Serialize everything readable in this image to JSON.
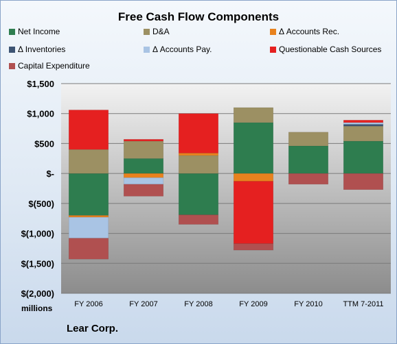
{
  "chart_data": {
    "type": "bar",
    "stacked": true,
    "title": "Free Cash Flow Components",
    "units_label": "millions",
    "company": "Lear Corp.",
    "categories": [
      "FY 2006",
      "FY 2007",
      "FY 2008",
      "FY 2009",
      "FY 2010",
      "TTM 7-2011"
    ],
    "ylim": [
      -2000,
      1500
    ],
    "yticks": [
      1500,
      1000,
      500,
      0,
      -500,
      -1000,
      -1500,
      -2000
    ],
    "ytick_labels": [
      "$1,500",
      "$1,000",
      "$500",
      "$-",
      "$(500)",
      "$(1,000)",
      "$(1,500)",
      "$(2,000)"
    ],
    "grid": true,
    "legend_position": "top",
    "series": [
      {
        "name": "Net Income",
        "color": "#2e7d4f",
        "values": [
          -700,
          250,
          -690,
          850,
          460,
          540
        ]
      },
      {
        "name": "D&A",
        "color": "#9c9063",
        "values": [
          400,
          290,
          300,
          250,
          230,
          250
        ]
      },
      {
        "name": "Δ Accounts Rec.",
        "color": "#e8821e",
        "values": [
          -30,
          -70,
          40,
          -130,
          0,
          0
        ]
      },
      {
        "name": "Δ Inventories",
        "color": "#3d5473",
        "values": [
          0,
          0,
          0,
          0,
          0,
          30
        ]
      },
      {
        "name": "Δ Accounts Pay.",
        "color": "#a9c4e4",
        "values": [
          -350,
          -110,
          0,
          0,
          0,
          30
        ]
      },
      {
        "name": "Questionable Cash Sources",
        "color": "#e52020",
        "values": [
          660,
          30,
          660,
          -1040,
          0,
          40
        ]
      },
      {
        "name": "Capital Expenditure",
        "color": "#b05050",
        "values": [
          -350,
          -200,
          -160,
          -110,
          -180,
          -270
        ]
      }
    ]
  }
}
